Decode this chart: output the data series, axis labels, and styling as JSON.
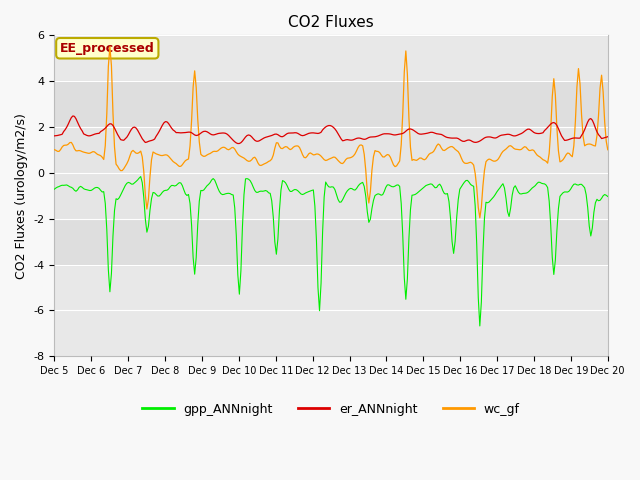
{
  "title": "CO2 Fluxes",
  "ylabel": "CO2 Fluxes (urology/m2/s)",
  "xlabel": "",
  "ylim": [
    -8,
    6
  ],
  "yticks": [
    -8,
    -6,
    -4,
    -2,
    0,
    2,
    4,
    6
  ],
  "n_days": 15,
  "n_points": 360,
  "colors": {
    "gpp": "#00ee00",
    "er": "#dd0000",
    "wc": "#ff9900"
  },
  "legend_entries": [
    "gpp_ANNnight",
    "er_ANNnight",
    "wc_gf"
  ],
  "annotation_text": "EE_processed",
  "annotation_color": "#aa0000",
  "annotation_bg": "#ffffcc",
  "annotation_border": "#bbaa00",
  "fig_bg": "#f8f8f8",
  "plot_bg": "#e8e8e8",
  "title_fontsize": 11,
  "label_fontsize": 9,
  "tick_fontsize": 8
}
